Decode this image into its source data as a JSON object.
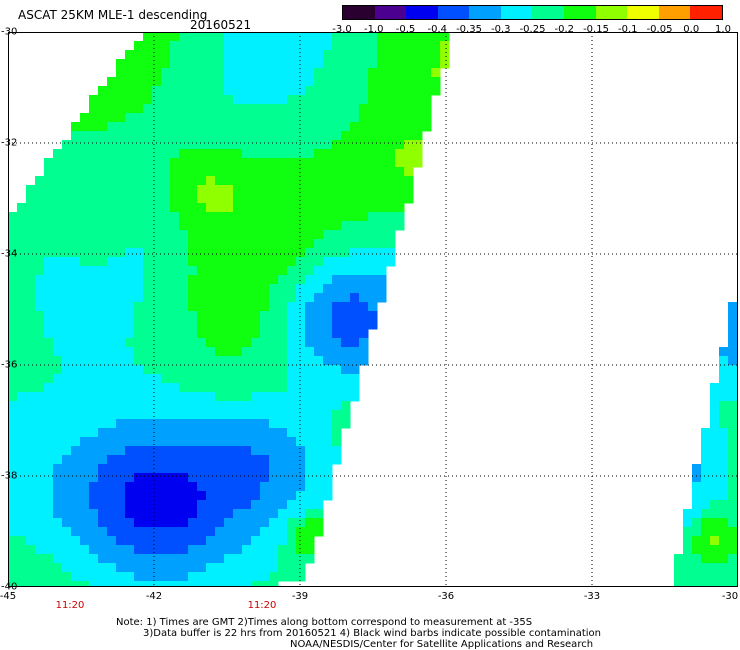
{
  "header": {
    "title": "ASCAT 25KM MLE-1 descending",
    "date": "20160521"
  },
  "colorbar": {
    "labels": [
      "-3.0",
      "-1.0",
      "-0.5",
      "-0.4",
      "-0.35",
      "-0.3",
      "-0.25",
      "-0.2",
      "-0.15",
      "-0.1",
      "-0.05",
      "0.0",
      "1.0"
    ],
    "colors": [
      "#2a0030",
      "#4b0090",
      "#0000f0",
      "#0050ff",
      "#00a0ff",
      "#00f0ff",
      "#00ff90",
      "#10ff10",
      "#90ff00",
      "#f0ff00",
      "#ffa000",
      "#ff2000"
    ]
  },
  "map": {
    "lat_labels": [
      "-30",
      "-32",
      "-34",
      "-36",
      "-38",
      "-40"
    ],
    "lon_labels": [
      "-45",
      "-42",
      "-39",
      "-36",
      "-33",
      "-30"
    ],
    "time_labels": [
      "11:20",
      "11:20"
    ]
  },
  "notes": {
    "line1": "Note: 1) Times are GMT 2)Times along bottom correspond to measurement at -35S",
    "line2": "3)Data buffer is 22 hrs from 20160521 4) Black wind barbs indicate possible contamination",
    "line3": "NOAA/NESDIS/Center for Satellite Applications and Research"
  }
}
